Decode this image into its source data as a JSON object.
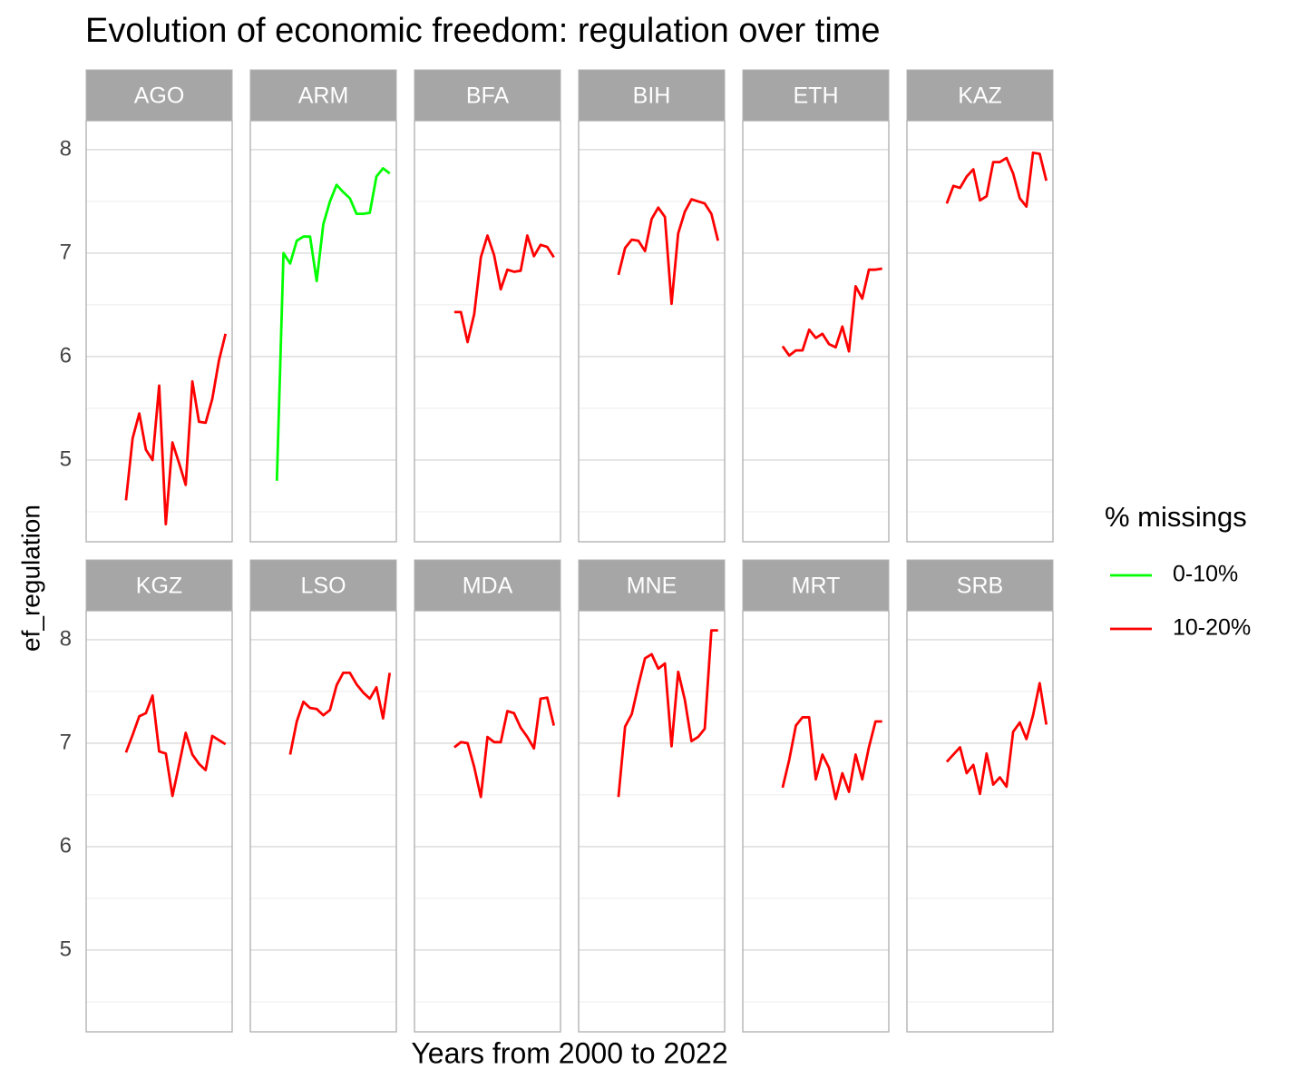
{
  "chart_data": {
    "type": "line",
    "title": "Evolution of economic freedom: regulation over time",
    "x_label": "Years from 2000 to 2022",
    "y_label": "ef_regulation",
    "legend_title": "% missings",
    "x": [
      2000,
      2001,
      2002,
      2003,
      2004,
      2005,
      2006,
      2007,
      2008,
      2009,
      2010,
      2011,
      2012,
      2013,
      2014,
      2015,
      2016,
      2017,
      2018,
      2019,
      2020
    ],
    "xlim": [
      1999,
      2021
    ],
    "ylim": [
      4.21,
      8.28
    ],
    "yticks": [
      5,
      6,
      7,
      8
    ],
    "yminor": [
      4.5,
      5.5,
      6.5,
      7.5
    ],
    "series": [
      {
        "name": "0-10%",
        "color": "#00ff00",
        "facets": [
          {
            "name": "ARM",
            "values": [
              null,
              null,
              null,
              4.8,
              7.0,
              6.9,
              7.12,
              7.16,
              7.16,
              6.73,
              7.28,
              7.5,
              7.66,
              7.59,
              7.53,
              7.38,
              7.38,
              7.39,
              7.74,
              7.82,
              7.77
            ]
          }
        ]
      },
      {
        "name": "10-20%",
        "color": "#ff0000",
        "facets": [
          {
            "name": "AGO",
            "values": [
              null,
              null,
              null,
              null,
              null,
              4.61,
              5.21,
              5.45,
              5.1,
              5.0,
              5.72,
              4.38,
              5.17,
              4.97,
              4.76,
              5.76,
              5.37,
              5.36,
              5.59,
              5.96,
              6.22
            ]
          },
          {
            "name": "BFA",
            "values": [
              null,
              null,
              null,
              null,
              null,
              6.43,
              6.43,
              6.14,
              6.41,
              6.96,
              7.17,
              6.98,
              6.65,
              6.84,
              6.82,
              6.83,
              7.17,
              6.97,
              7.08,
              7.06,
              6.96
            ]
          },
          {
            "name": "BIH",
            "values": [
              null,
              null,
              null,
              null,
              null,
              6.79,
              7.05,
              7.13,
              7.12,
              7.02,
              7.33,
              7.44,
              7.35,
              6.51,
              7.19,
              7.4,
              7.52,
              7.5,
              7.48,
              7.38,
              7.12
            ]
          },
          {
            "name": "ETH",
            "values": [
              null,
              null,
              null,
              null,
              null,
              6.1,
              6.01,
              6.06,
              6.06,
              6.26,
              6.18,
              6.22,
              6.12,
              6.09,
              6.29,
              6.05,
              6.68,
              6.56,
              6.84,
              6.84,
              6.85
            ]
          },
          {
            "name": "KAZ",
            "values": [
              null,
              null,
              null,
              null,
              null,
              7.48,
              7.65,
              7.63,
              7.74,
              7.81,
              7.51,
              7.55,
              7.88,
              7.88,
              7.92,
              7.77,
              7.53,
              7.45,
              7.97,
              7.96,
              7.7
            ]
          },
          {
            "name": "KGZ",
            "values": [
              null,
              null,
              null,
              null,
              null,
              6.91,
              7.08,
              7.26,
              7.29,
              7.46,
              6.92,
              6.9,
              6.49,
              6.79,
              7.1,
              6.89,
              6.8,
              6.74,
              7.07,
              7.03,
              6.99
            ]
          },
          {
            "name": "LSO",
            "values": [
              null,
              null,
              null,
              null,
              null,
              6.89,
              7.21,
              7.4,
              7.34,
              7.33,
              7.27,
              7.32,
              7.56,
              7.68,
              7.68,
              7.57,
              7.49,
              7.43,
              7.54,
              7.24,
              7.68
            ]
          },
          {
            "name": "MDA",
            "values": [
              null,
              null,
              null,
              null,
              null,
              6.96,
              7.01,
              7.0,
              6.77,
              6.48,
              7.06,
              7.01,
              7.01,
              7.31,
              7.29,
              7.15,
              7.06,
              6.95,
              7.43,
              7.44,
              7.17
            ]
          },
          {
            "name": "MNE",
            "values": [
              null,
              null,
              null,
              null,
              null,
              6.48,
              7.16,
              7.28,
              7.56,
              7.82,
              7.86,
              7.72,
              7.77,
              6.97,
              7.69,
              7.42,
              7.02,
              7.06,
              7.14,
              8.09,
              8.09
            ]
          },
          {
            "name": "MRT",
            "values": [
              null,
              null,
              null,
              null,
              null,
              6.57,
              6.84,
              7.17,
              7.25,
              7.25,
              6.65,
              6.89,
              6.76,
              6.46,
              6.71,
              6.53,
              6.89,
              6.65,
              6.96,
              7.21,
              7.21
            ]
          },
          {
            "name": "SRB",
            "values": [
              null,
              null,
              null,
              null,
              null,
              6.82,
              6.89,
              6.96,
              6.71,
              6.79,
              6.51,
              6.9,
              6.6,
              6.67,
              6.58,
              7.11,
              7.2,
              7.04,
              7.27,
              7.58,
              7.18
            ]
          }
        ]
      }
    ]
  }
}
